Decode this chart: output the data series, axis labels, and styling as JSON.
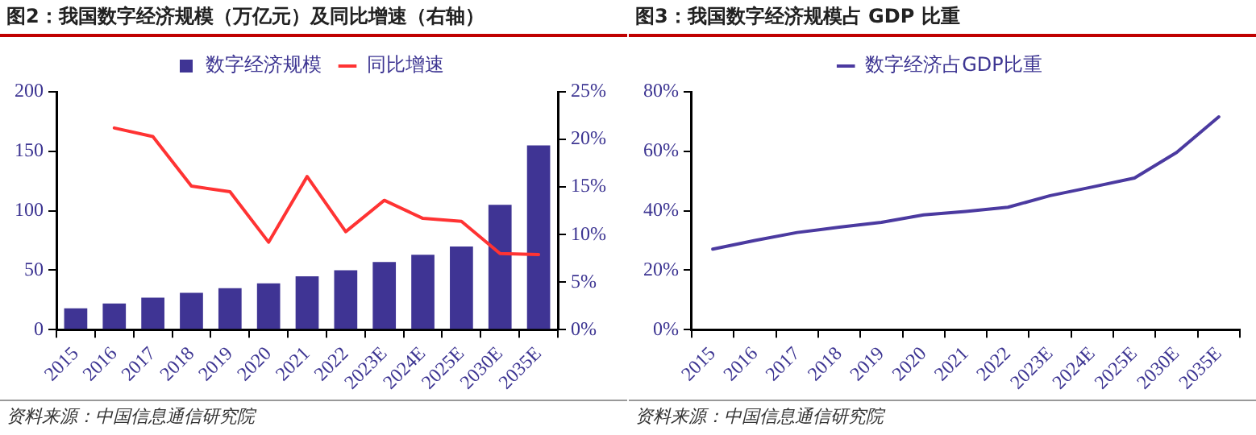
{
  "chart_data": [
    {
      "type": "bar",
      "title": "图2：我国数字经济规模（万亿元）及同比增速（右轴）",
      "categories": [
        "2015",
        "2016",
        "2017",
        "2018",
        "2019",
        "2020",
        "2021",
        "2022",
        "2023E",
        "2024E",
        "2025E",
        "2030E",
        "2035E"
      ],
      "series": [
        {
          "name": "数字经济规模",
          "type": "bar",
          "color": "#3f3494",
          "values": [
            18,
            22,
            27,
            31,
            35,
            39,
            45,
            50,
            57,
            63,
            70,
            105,
            155
          ]
        },
        {
          "name": "同比增速",
          "type": "line",
          "axis": "y2",
          "color": "#ff3333",
          "values": [
            null,
            21.2,
            20.3,
            15.1,
            14.5,
            9.2,
            16.1,
            10.3,
            13.6,
            11.7,
            11.4,
            8.0,
            7.9
          ]
        }
      ],
      "ylim": [
        0,
        200
      ],
      "yticks": [
        0,
        50,
        100,
        150,
        200
      ],
      "y2lim": [
        0,
        25
      ],
      "y2ticks": [
        {
          "value": 0,
          "label": "0%"
        },
        {
          "value": 5,
          "label": "5%"
        },
        {
          "value": 10,
          "label": "10%"
        },
        {
          "value": 15,
          "label": "15%"
        },
        {
          "value": 20,
          "label": "20%"
        },
        {
          "value": 25,
          "label": "25%"
        }
      ],
      "legend": "top",
      "marker": "none",
      "annotations": [
        "资料来源：中国信息通信研究院"
      ]
    },
    {
      "type": "line",
      "title": "图3：我国数字经济规模占 GDP 比重",
      "categories": [
        "2015",
        "2016",
        "2017",
        "2018",
        "2019",
        "2020",
        "2021",
        "2022",
        "2023E",
        "2024E",
        "2025E",
        "2030E",
        "2035E"
      ],
      "series": [
        {
          "name": "数字经济占GDP比重",
          "color": "#4b3aa0",
          "values": [
            27.1,
            30.0,
            32.7,
            34.5,
            36.1,
            38.6,
            39.8,
            41.2,
            45.1,
            48.0,
            51.0,
            59.6,
            71.6
          ]
        }
      ],
      "ylim": [
        0,
        80
      ],
      "yticks": [
        {
          "value": 0,
          "label": "0%"
        },
        {
          "value": 20,
          "label": "20%"
        },
        {
          "value": 40,
          "label": "40%"
        },
        {
          "value": 60,
          "label": "60%"
        },
        {
          "value": 80,
          "label": "80%"
        }
      ],
      "legend": "top",
      "marker": "none",
      "annotations": [
        "资料来源：中国信息通信研究院"
      ]
    }
  ]
}
